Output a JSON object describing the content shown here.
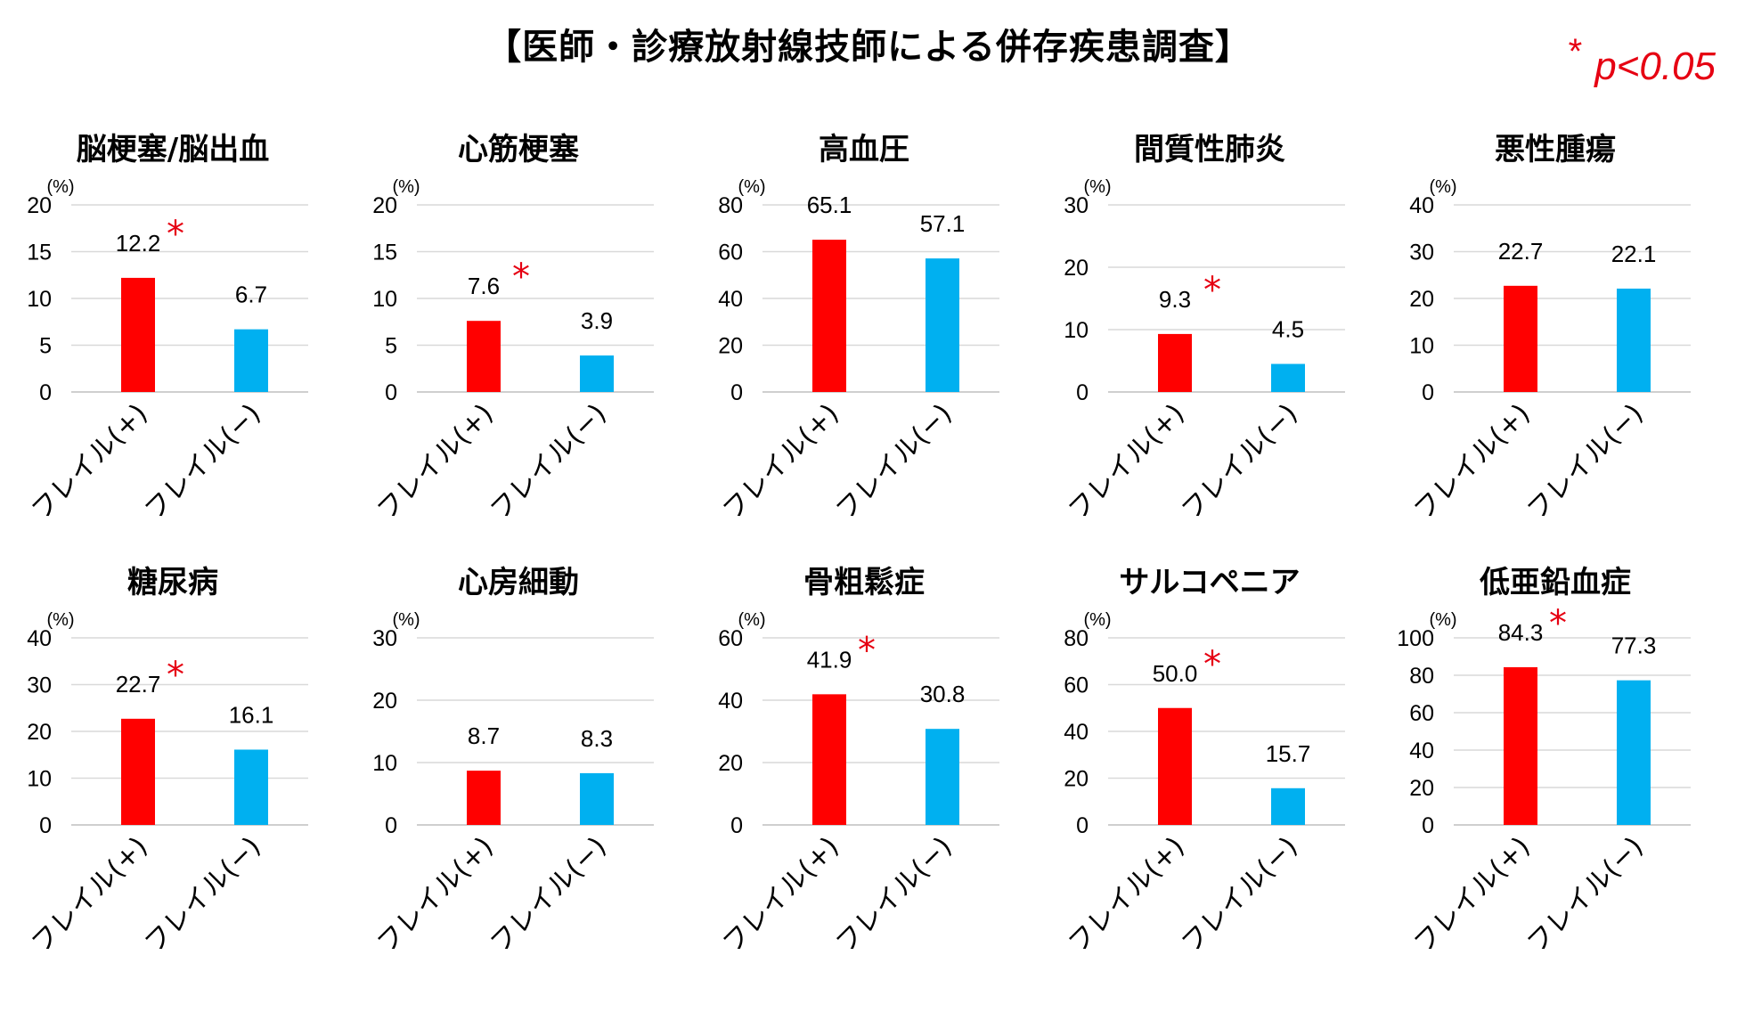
{
  "title": "【医師・診療放射線技師による併存疾患調査】",
  "significance_star": "*",
  "significance_text": "p<0.05",
  "colors": {
    "frail_plus": "#ff0000",
    "frail_minus": "#00b0f0",
    "grid": "#d9d9d9",
    "star": "#e60012"
  },
  "chart_data": [
    {
      "type": "bar",
      "title": "脳梗塞/脳出血",
      "unit": "(%)",
      "categories": [
        "フレイル(+)",
        "フレイル(−)"
      ],
      "values": [
        12.2,
        6.7
      ],
      "value_labels": [
        "12.2",
        "6.7"
      ],
      "ylim": [
        0,
        20
      ],
      "yticks": [
        0,
        5,
        10,
        15,
        20
      ],
      "significant": true
    },
    {
      "type": "bar",
      "title": "心筋梗塞",
      "unit": "(%)",
      "categories": [
        "フレイル(+)",
        "フレイル(−)"
      ],
      "values": [
        7.6,
        3.9
      ],
      "value_labels": [
        "7.6",
        "3.9"
      ],
      "ylim": [
        0,
        20
      ],
      "yticks": [
        0,
        5,
        10,
        15,
        20
      ],
      "significant": true
    },
    {
      "type": "bar",
      "title": "高血圧",
      "unit": "(%)",
      "categories": [
        "フレイル(+)",
        "フレイル(−)"
      ],
      "values": [
        65.1,
        57.1
      ],
      "value_labels": [
        "65.1",
        "57.1"
      ],
      "ylim": [
        0,
        80
      ],
      "yticks": [
        0,
        20,
        40,
        60,
        80
      ],
      "significant": false
    },
    {
      "type": "bar",
      "title": "間質性肺炎",
      "unit": "(%)",
      "categories": [
        "フレイル(+)",
        "フレイル(−)"
      ],
      "values": [
        9.3,
        4.5
      ],
      "value_labels": [
        "9.3",
        "4.5"
      ],
      "ylim": [
        0,
        30
      ],
      "yticks": [
        0,
        10,
        20,
        30
      ],
      "significant": true
    },
    {
      "type": "bar",
      "title": "悪性腫瘍",
      "unit": "(%)",
      "categories": [
        "フレイル(+)",
        "フレイル(−)"
      ],
      "values": [
        22.7,
        22.1
      ],
      "value_labels": [
        "22.7",
        "22.1"
      ],
      "ylim": [
        0,
        40
      ],
      "yticks": [
        0,
        10,
        20,
        30,
        40
      ],
      "significant": false
    },
    {
      "type": "bar",
      "title": "糖尿病",
      "unit": "(%)",
      "categories": [
        "フレイル(+)",
        "フレイル(−)"
      ],
      "values": [
        22.7,
        16.1
      ],
      "value_labels": [
        "22.7",
        "16.1"
      ],
      "ylim": [
        0,
        40
      ],
      "yticks": [
        0,
        10,
        20,
        30,
        40
      ],
      "significant": true
    },
    {
      "type": "bar",
      "title": "心房細動",
      "unit": "(%)",
      "categories": [
        "フレイル(+)",
        "フレイル(−)"
      ],
      "values": [
        8.7,
        8.3
      ],
      "value_labels": [
        "8.7",
        "8.3"
      ],
      "ylim": [
        0,
        30
      ],
      "yticks": [
        0,
        10,
        20,
        30
      ],
      "significant": false
    },
    {
      "type": "bar",
      "title": "骨粗鬆症",
      "unit": "(%)",
      "categories": [
        "フレイル(+)",
        "フレイル(−)"
      ],
      "values": [
        41.9,
        30.8
      ],
      "value_labels": [
        "41.9",
        "30.8"
      ],
      "ylim": [
        0,
        60
      ],
      "yticks": [
        0,
        20,
        40,
        60
      ],
      "significant": true
    },
    {
      "type": "bar",
      "title": "サルコペニア",
      "unit": "(%)",
      "categories": [
        "フレイル(+)",
        "フレイル(−)"
      ],
      "values": [
        50.0,
        15.7
      ],
      "value_labels": [
        "50.0",
        "15.7"
      ],
      "ylim": [
        0,
        80
      ],
      "yticks": [
        0,
        20,
        40,
        60,
        80
      ],
      "significant": true
    },
    {
      "type": "bar",
      "title": "低亜鉛血症",
      "unit": "(%)",
      "categories": [
        "フレイル(+)",
        "フレイル(−)"
      ],
      "values": [
        84.3,
        77.3
      ],
      "value_labels": [
        "84.3",
        "77.3"
      ],
      "ylim": [
        0,
        100
      ],
      "yticks": [
        0,
        20,
        40,
        60,
        80,
        100
      ],
      "significant": true
    }
  ]
}
